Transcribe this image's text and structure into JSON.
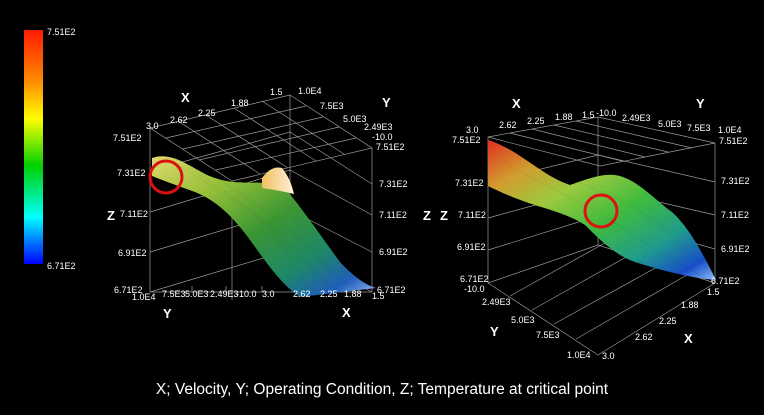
{
  "caption": "X; Velocity, Y; Operating Condition, Z; Temperature at critical point",
  "colorbar": {
    "max_label": "7.51E2",
    "min_label": "6.71E2",
    "colors": [
      "#ff1a00",
      "#ff8c00",
      "#ffff00",
      "#00d000",
      "#00ffff",
      "#0000ff"
    ]
  },
  "highlight_color": "#e01010",
  "chart_data": [
    {
      "type": "surface",
      "x_axis": {
        "name": "X",
        "ticks": [
          "3.0",
          "2.62",
          "2.25",
          "1.88",
          "1.5"
        ]
      },
      "y_axis": {
        "name": "Y",
        "ticks": [
          "1.0E4",
          "7.5E3",
          "5.0E3",
          "2.49E3",
          "-10.0"
        ]
      },
      "z_axis": {
        "name": "Z",
        "ticks": [
          "7.51E2",
          "7.31E2",
          "7.11E2",
          "6.91E2",
          "6.71E2"
        ]
      },
      "zlim": [
        671,
        751
      ]
    },
    {
      "type": "surface",
      "x_axis": {
        "name": "X",
        "ticks": [
          "3.0",
          "2.62",
          "2.25",
          "1.88",
          "1.5"
        ]
      },
      "y_axis": {
        "name": "Y",
        "ticks": [
          "-10.0",
          "2.49E3",
          "5.0E3",
          "7.5E3",
          "1.0E4"
        ]
      },
      "z_axis": {
        "name": "Z",
        "ticks": [
          "7.51E2",
          "7.31E2",
          "7.11E2",
          "6.91E2",
          "6.71E2"
        ]
      },
      "zlim": [
        671,
        751
      ]
    }
  ]
}
